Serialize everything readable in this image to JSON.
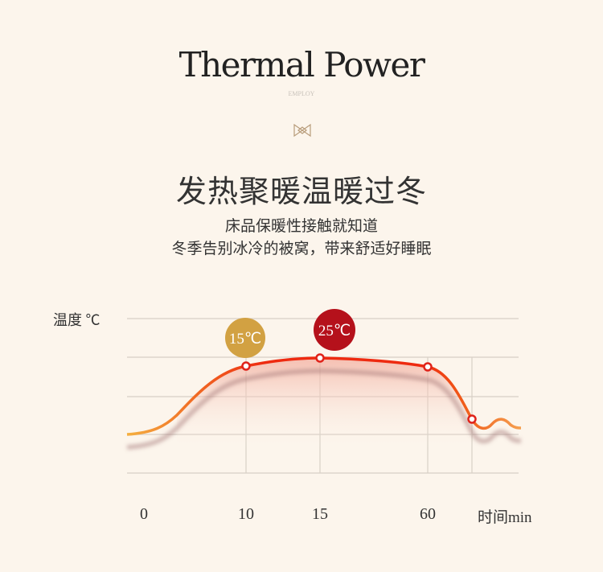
{
  "header": {
    "title": "Thermal Power",
    "subtitle": "EMPLOY",
    "ornament_icon": "bowtie-icon"
  },
  "headline": "发热聚暖温暖过冬",
  "tagline": [
    "床品保暖性接触就知道",
    "冬季告别冰冷的被窝，带来舒适好睡眠"
  ],
  "chart_data": {
    "type": "line",
    "ylabel": "温度 ℃",
    "xlabel": "时间min",
    "x_ticks": [
      "0",
      "10",
      "15",
      "60"
    ],
    "annotations": [
      {
        "text": "15℃",
        "at_x": "10",
        "color": "#d2a142"
      },
      {
        "text": "25℃",
        "at_x": "15",
        "color": "#b5111b"
      }
    ],
    "grid": true,
    "colors": {
      "line": "#ee2a10",
      "line_start": "#f5a233",
      "fill": "#f2b3a8"
    }
  }
}
